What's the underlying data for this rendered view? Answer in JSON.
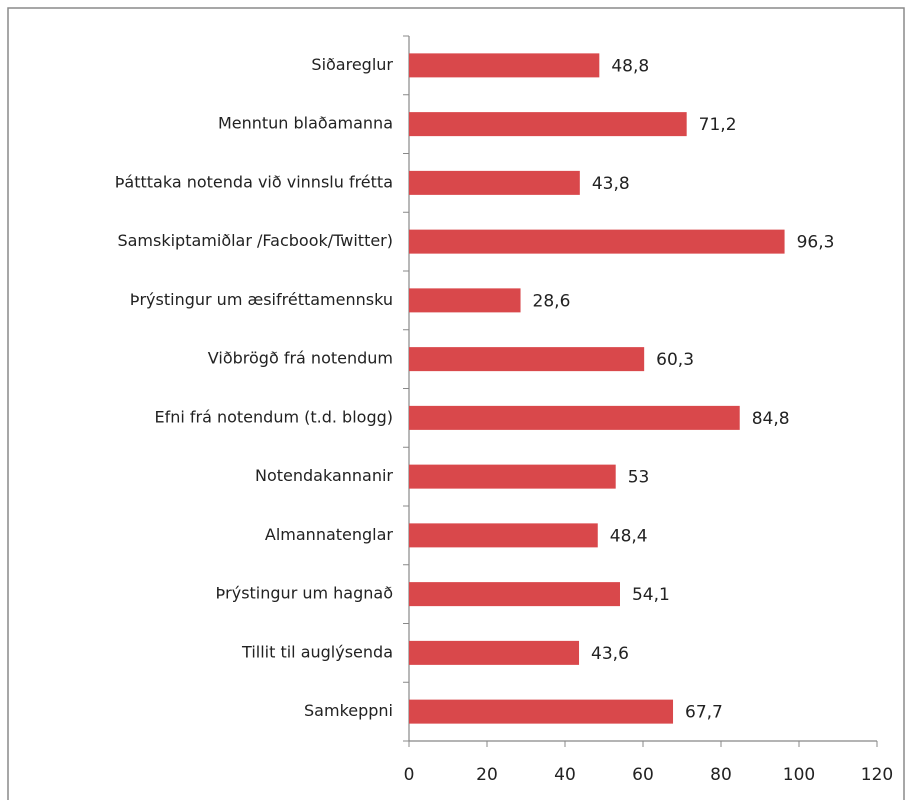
{
  "chart_data": {
    "type": "bar",
    "orientation": "horizontal",
    "categories": [
      "Siðareglur",
      "Menntun blaðamanna",
      "Þátttaka notenda við vinnslu frétta",
      "Samskiptamiðlar /Facbook/Twitter)",
      "Þrýstingur um æsifréttamennsku",
      "Viðbrögð frá notendum",
      "Efni frá notendum (t.d. blogg)",
      "Notendakannanir",
      "Almannatenglar",
      "Þrýstingur um hagnað",
      "Tillit til auglýsenda",
      "Samkeppni"
    ],
    "values": [
      48.8,
      71.2,
      43.8,
      96.3,
      28.6,
      60.3,
      84.8,
      53,
      48.4,
      54.1,
      43.6,
      67.7
    ],
    "value_labels": [
      "48,8",
      "71,2",
      "43,8",
      "96,3",
      "28,6",
      "60,3",
      "84,8",
      "53",
      "48,4",
      "54,1",
      "43,6",
      "67,7"
    ],
    "color": "#d9484b",
    "xlim": [
      0,
      120
    ],
    "xticks": [
      0,
      20,
      40,
      60,
      80,
      100,
      120
    ],
    "grid": false
  }
}
